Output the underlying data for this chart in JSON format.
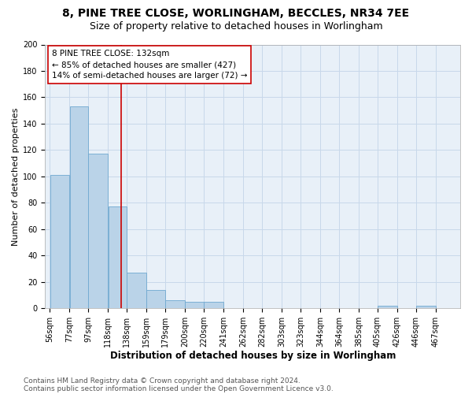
{
  "title1": "8, PINE TREE CLOSE, WORLINGHAM, BECCLES, NR34 7EE",
  "title2": "Size of property relative to detached houses in Worlingham",
  "xlabel": "Distribution of detached houses by size in Worlingham",
  "ylabel": "Number of detached properties",
  "bin_edges": [
    56,
    77,
    97,
    118,
    138,
    159,
    179,
    200,
    220,
    241,
    262,
    282,
    303,
    323,
    344,
    364,
    385,
    405,
    426,
    446,
    467
  ],
  "bar_heights": [
    101,
    153,
    117,
    77,
    27,
    14,
    6,
    5,
    5,
    0,
    0,
    0,
    0,
    0,
    0,
    0,
    0,
    2,
    0,
    2
  ],
  "bar_color": "#bad3e8",
  "bar_edgecolor": "#6fa8d0",
  "grid_color": "#c8d8ea",
  "bg_color": "#e8f0f8",
  "vline_x": 132,
  "vline_color": "#cc0000",
  "annotation_text": "8 PINE TREE CLOSE: 132sqm\n← 85% of detached houses are smaller (427)\n14% of semi-detached houses are larger (72) →",
  "annotation_box_facecolor": "#ffffff",
  "annotation_box_edgecolor": "#cc0000",
  "ylim": [
    0,
    200
  ],
  "yticks": [
    0,
    20,
    40,
    60,
    80,
    100,
    120,
    140,
    160,
    180,
    200
  ],
  "tick_labels": [
    "56sqm",
    "77sqm",
    "97sqm",
    "118sqm",
    "138sqm",
    "159sqm",
    "179sqm",
    "200sqm",
    "220sqm",
    "241sqm",
    "262sqm",
    "282sqm",
    "303sqm",
    "323sqm",
    "344sqm",
    "364sqm",
    "385sqm",
    "405sqm",
    "426sqm",
    "446sqm",
    "467sqm"
  ],
  "footer1": "Contains HM Land Registry data © Crown copyright and database right 2024.",
  "footer2": "Contains public sector information licensed under the Open Government Licence v3.0.",
  "title1_fontsize": 10,
  "title2_fontsize": 9,
  "xlabel_fontsize": 8.5,
  "ylabel_fontsize": 8,
  "tick_fontsize": 7,
  "annotation_fontsize": 7.5,
  "footer_fontsize": 6.5
}
